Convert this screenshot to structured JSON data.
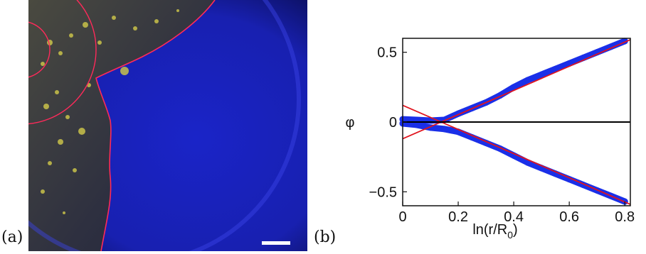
{
  "panels": {
    "a_label": "(a)",
    "b_label": "(b)"
  },
  "chart_data": {
    "type": "scatter",
    "xlabel": "ln(r/R",
    "xlabel_sub": "0",
    "xlabel_close": ")",
    "ylabel": "φ",
    "xlim": [
      0,
      0.82
    ],
    "ylim": [
      -0.6,
      0.6
    ],
    "xticks": [
      0,
      0.2,
      0.4,
      0.6,
      0.8
    ],
    "xtick_labels": [
      "0",
      "0.2",
      "0.4",
      "0.6",
      "0.8"
    ],
    "yticks": [
      -0.5,
      0,
      0.5
    ],
    "ytick_labels": [
      "−0.5",
      "0",
      "0.5"
    ],
    "grid": false,
    "series": [
      {
        "role": "data-upper",
        "color": "#1a2fe8",
        "x": [
          0,
          0.05,
          0.1,
          0.15,
          0.2,
          0.25,
          0.3,
          0.35,
          0.4,
          0.45,
          0.5,
          0.55,
          0.6,
          0.65,
          0.7,
          0.75,
          0.8
        ],
        "y": [
          0.02,
          0.015,
          0.01,
          0.015,
          0.06,
          0.1,
          0.14,
          0.19,
          0.25,
          0.3,
          0.34,
          0.38,
          0.42,
          0.46,
          0.5,
          0.54,
          0.58
        ]
      },
      {
        "role": "data-lower",
        "color": "#1a2fe8",
        "x": [
          0,
          0.05,
          0.1,
          0.15,
          0.2,
          0.25,
          0.3,
          0.35,
          0.4,
          0.45,
          0.5,
          0.55,
          0.6,
          0.65,
          0.7,
          0.75,
          0.8
        ],
        "y": [
          -0.01,
          -0.02,
          -0.04,
          -0.05,
          -0.07,
          -0.11,
          -0.15,
          -0.19,
          -0.24,
          -0.29,
          -0.33,
          -0.37,
          -0.41,
          -0.45,
          -0.49,
          -0.53,
          -0.57
        ]
      },
      {
        "role": "fit-upper",
        "color": "#e0141e",
        "x": [
          0,
          0.82
        ],
        "y": [
          -0.12,
          0.59
        ]
      },
      {
        "role": "fit-lower",
        "color": "#e0141e",
        "x": [
          0,
          0.82
        ],
        "y": [
          0.12,
          -0.59
        ]
      },
      {
        "role": "zero-line",
        "color": "#000000",
        "x": [
          0,
          0.82
        ],
        "y": [
          0,
          0
        ]
      }
    ]
  }
}
